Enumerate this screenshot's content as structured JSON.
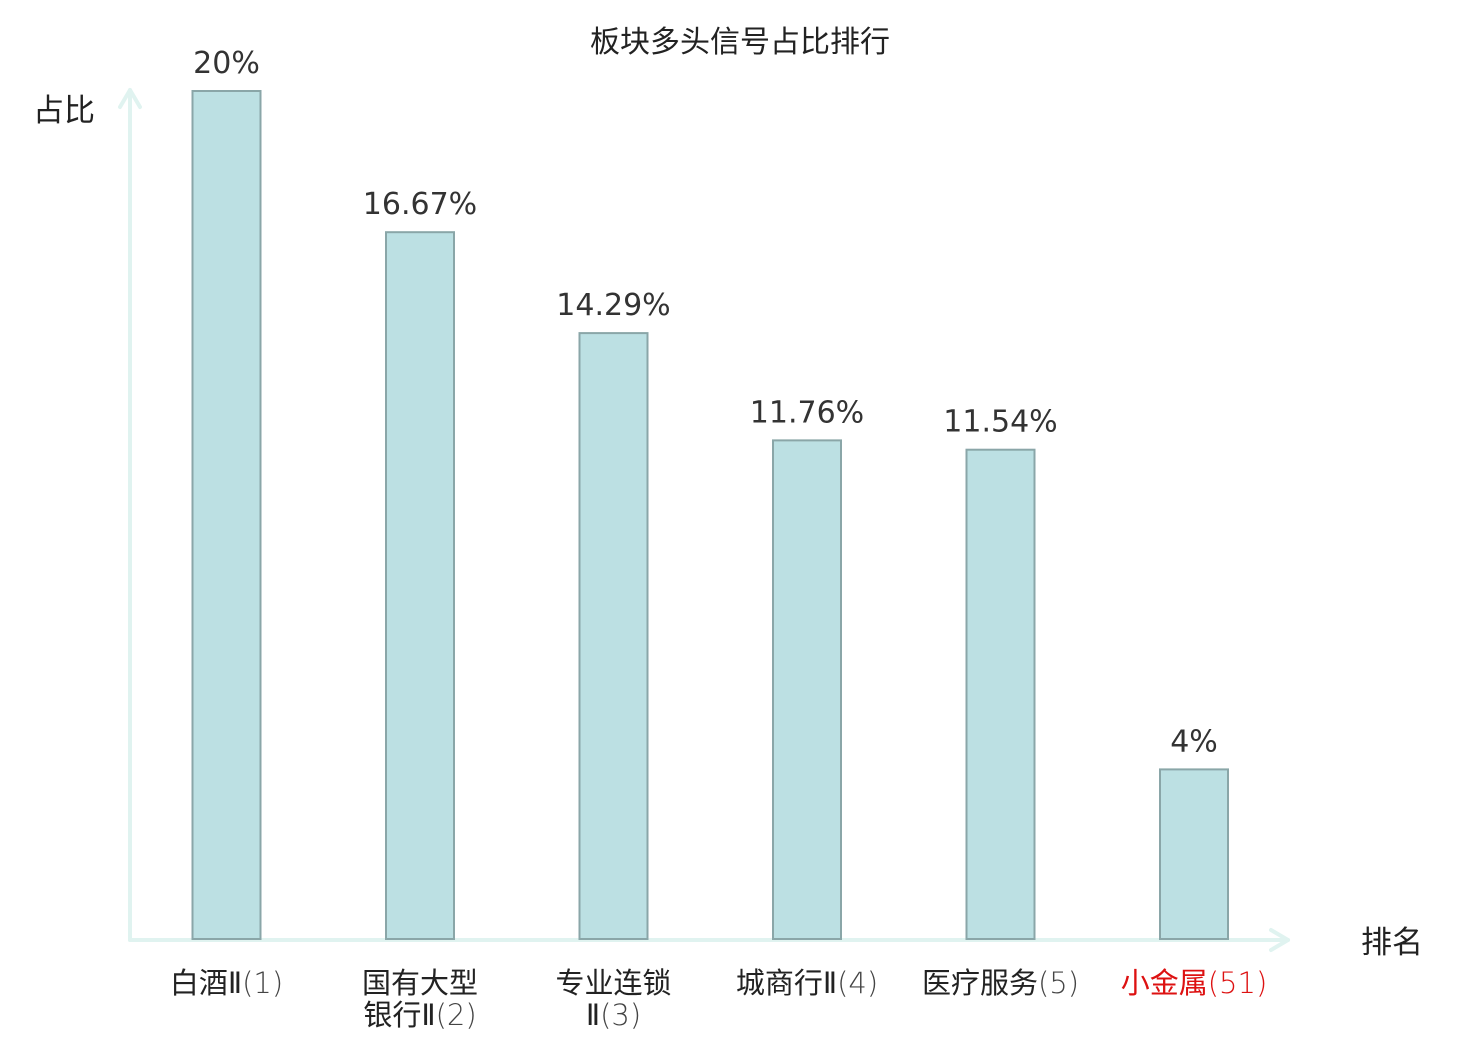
{
  "chart_data": {
    "type": "bar",
    "title": "板块多头信号占比排行",
    "ylabel": "占比",
    "xlabel": "排名",
    "ylim": [
      0,
      20
    ],
    "grid": false,
    "legend": "none",
    "categories": [
      {
        "name_lines": [
          "白酒Ⅱ"
        ],
        "rank": "(1)",
        "highlight": false
      },
      {
        "name_lines": [
          "国有大型",
          "银行Ⅱ"
        ],
        "rank": "(2)",
        "highlight": false
      },
      {
        "name_lines": [
          "专业连锁",
          "Ⅱ"
        ],
        "rank": "(3)",
        "highlight": false
      },
      {
        "name_lines": [
          "城商行Ⅱ"
        ],
        "rank": "(4)",
        "highlight": false
      },
      {
        "name_lines": [
          "医疗服务"
        ],
        "rank": "(5)",
        "highlight": false
      },
      {
        "name_lines": [
          "小金属"
        ],
        "rank": "(51)",
        "highlight": true
      }
    ],
    "values": [
      20,
      16.67,
      14.29,
      11.76,
      11.54,
      4
    ],
    "value_labels": [
      "20%",
      "16.67%",
      "14.29%",
      "11.76%",
      "11.54%",
      "4%"
    ]
  },
  "colors": {
    "bar_fill": "#bce0e3",
    "bar_stroke": "#8aa6a8",
    "axis": "#e0f3f0",
    "text": "#222222",
    "label_text": "#333333",
    "highlight": "#dd1111"
  }
}
